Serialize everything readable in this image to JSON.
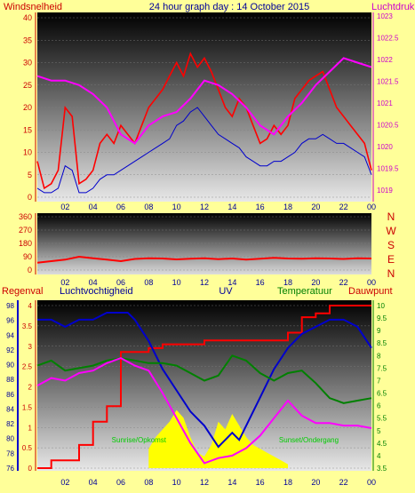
{
  "colors": {
    "bg": "#ffff99",
    "wind": "#ff0000",
    "gust": "#0000cc",
    "pressure": "#ff00ff",
    "humidity": "#0000cc",
    "rain": "#ff0000",
    "uv": "#ffff00",
    "temp": "#008000",
    "dew": "#ff00ff",
    "direction": "#ff0000",
    "dark_text": "#000099",
    "red_text": "#cc0000",
    "green_text": "#008000"
  },
  "header": {
    "left": "Windsnelheid",
    "center": "24 hour graph day : 14 October 2015",
    "right": "Luchtdruk"
  },
  "x_ticks": [
    "02",
    "04",
    "06",
    "08",
    "10",
    "12",
    "14",
    "16",
    "18",
    "20",
    "22",
    "00"
  ],
  "panel1": {
    "wind_ticks": [
      "0",
      "5",
      "10",
      "15",
      "20",
      "25",
      "30",
      "35",
      "40"
    ],
    "pressure_ticks": [
      "1019",
      "1019.5",
      "1020",
      "1020.5",
      "1021",
      "1021.5",
      "1022",
      "1022.5",
      "1023"
    ]
  },
  "panel2": {
    "dir_ticks": [
      "0",
      "90",
      "180",
      "270",
      "360"
    ],
    "compass": [
      "N",
      "W",
      "S",
      "E",
      "N"
    ]
  },
  "panel3": {
    "labels": {
      "rain": "Regenval",
      "humidity": "Luchtvochtigheid",
      "uv": "UV",
      "temp": "Temperatuur",
      "dew": "Dauwpunt"
    },
    "humidity_ticks": [
      "76",
      "78",
      "80",
      "82",
      "84",
      "86",
      "88",
      "90",
      "92",
      "94",
      "96",
      "98"
    ],
    "rain_ticks": [
      "0",
      "0.5",
      "1",
      "1.5",
      "2",
      "2.5",
      "3",
      "3.5",
      "4"
    ],
    "temp_ticks": [
      "3.5",
      "4",
      "4.5",
      "5",
      "5.5",
      "6",
      "6.5",
      "7",
      "7.5",
      "8",
      "8.5",
      "9",
      "9.5",
      "10"
    ],
    "annotations": [
      "Sunrise/Opkomst",
      "Sunset/Ondergang"
    ]
  },
  "chart_data": [
    {
      "type": "line",
      "x_range": [
        0,
        24
      ],
      "series": [
        {
          "axis": "left",
          "ylim": [
            0,
            40
          ],
          "x": [
            0,
            0.5,
            1,
            1.5,
            2,
            2.5,
            3,
            3.5,
            4,
            4.5,
            5,
            5.5,
            6,
            6.5,
            7,
            7.5,
            8,
            8.5,
            9,
            9.5,
            10,
            10.5,
            11,
            11.5,
            12,
            12.5,
            13,
            13.5,
            14,
            14.5,
            15,
            15.5,
            16,
            16.5,
            17,
            17.5,
            18,
            18.5,
            19,
            19.5,
            20,
            20.5,
            21,
            21.5,
            22,
            22.5,
            23,
            23.5,
            24
          ],
          "values": [
            8,
            2,
            3,
            6,
            20,
            18,
            3,
            4,
            6,
            12,
            14,
            12,
            16,
            14,
            12,
            16,
            20,
            22,
            24,
            27,
            30,
            27,
            32,
            29,
            31,
            28,
            24,
            20,
            18,
            22,
            20,
            16,
            12,
            13,
            16,
            14,
            16,
            22,
            24,
            26,
            27,
            28,
            24,
            20,
            18,
            16,
            14,
            12,
            6
          ]
        },
        {
          "axis": "left",
          "ylim": [
            0,
            40
          ],
          "x": [
            0,
            0.5,
            1,
            1.5,
            2,
            2.5,
            3,
            3.5,
            4,
            4.5,
            5,
            5.5,
            6,
            6.5,
            7,
            7.5,
            8,
            8.5,
            9,
            9.5,
            10,
            10.5,
            11,
            11.5,
            12,
            12.5,
            13,
            13.5,
            14,
            14.5,
            15,
            15.5,
            16,
            16.5,
            17,
            17.5,
            18,
            18.5,
            19,
            19.5,
            20,
            20.5,
            21,
            21.5,
            22,
            22.5,
            23,
            23.5,
            24
          ],
          "values": [
            2,
            1,
            1,
            2,
            7,
            6,
            1,
            1,
            2,
            4,
            5,
            5,
            6,
            7,
            8,
            9,
            10,
            11,
            12,
            13,
            16,
            17,
            19,
            20,
            18,
            16,
            14,
            13,
            12,
            11,
            9,
            8,
            7,
            7,
            8,
            8,
            9,
            10,
            12,
            13,
            13,
            14,
            13,
            12,
            12,
            11,
            10,
            9,
            5
          ]
        },
        {
          "axis": "right",
          "ylim": [
            1019,
            1023
          ],
          "x": [
            0,
            1,
            2,
            3,
            4,
            5,
            6,
            7,
            8,
            9,
            10,
            11,
            12,
            13,
            14,
            15,
            16,
            17,
            18,
            19,
            20,
            21,
            22,
            23,
            24
          ],
          "values": [
            1021.7,
            1021.6,
            1021.6,
            1021.5,
            1021.3,
            1021.0,
            1020.4,
            1020.2,
            1020.6,
            1020.8,
            1020.9,
            1021.2,
            1021.6,
            1021.5,
            1021.3,
            1021.0,
            1020.6,
            1020.4,
            1020.8,
            1021.1,
            1021.5,
            1021.8,
            1022.1,
            1022.0,
            1021.9
          ]
        }
      ]
    },
    {
      "type": "line",
      "x_range": [
        0,
        24
      ],
      "series": [
        {
          "ylim": [
            0,
            360
          ],
          "x": [
            0,
            1,
            2,
            3,
            4,
            5,
            6,
            7,
            8,
            9,
            10,
            11,
            12,
            13,
            14,
            15,
            16,
            17,
            18,
            19,
            20,
            21,
            22,
            23,
            24
          ],
          "values": [
            50,
            60,
            70,
            90,
            80,
            70,
            60,
            75,
            80,
            78,
            72,
            76,
            80,
            74,
            78,
            70,
            76,
            82,
            78,
            76,
            80,
            78,
            75,
            80,
            78
          ]
        }
      ]
    },
    {
      "type": "line",
      "x_range": [
        0,
        24
      ],
      "series": [
        {
          "axis": "humidity",
          "ylim": [
            76,
            99
          ],
          "x": [
            0,
            1,
            2,
            3,
            4,
            5,
            6,
            6.5,
            7,
            8,
            9,
            10,
            11,
            12,
            13,
            14,
            14.5,
            15,
            16,
            17,
            18,
            19,
            20,
            21,
            22,
            23,
            24
          ],
          "values": [
            97,
            97,
            96,
            97,
            97,
            98,
            98,
            98,
            97,
            94,
            90,
            87,
            84,
            82,
            79,
            81,
            80,
            82,
            86,
            90,
            93,
            95,
            96,
            97,
            97,
            96,
            93
          ]
        },
        {
          "axis": "rain",
          "ylim": [
            0,
            4.2
          ],
          "x": [
            0,
            1,
            2,
            3,
            4,
            5,
            6,
            7,
            8,
            9,
            10,
            11,
            12,
            13,
            14,
            15,
            16,
            17,
            18,
            19,
            20,
            21,
            22,
            23,
            24
          ],
          "values": [
            0,
            0.2,
            0.2,
            0.6,
            1.2,
            1.6,
            3.0,
            3.0,
            3.1,
            3.2,
            3.2,
            3.2,
            3.3,
            3.3,
            3.3,
            3.3,
            3.3,
            3.3,
            3.5,
            3.9,
            4.0,
            4.2,
            4.2,
            4.2,
            4.2
          ]
        },
        {
          "axis": "temp",
          "ylim": [
            3.5,
            10
          ],
          "x": [
            0,
            1,
            2,
            3,
            4,
            5,
            6,
            7,
            8,
            9,
            10,
            11,
            12,
            13,
            14,
            15,
            16,
            17,
            18,
            19,
            20,
            21,
            22,
            23,
            24
          ],
          "values": [
            7.6,
            7.8,
            7.4,
            7.5,
            7.6,
            7.8,
            7.9,
            7.8,
            7.7,
            7.7,
            7.6,
            7.3,
            7.0,
            7.2,
            8.0,
            7.8,
            7.3,
            7.0,
            7.3,
            7.4,
            6.9,
            6.3,
            6.1,
            6.2,
            6.3
          ]
        },
        {
          "axis": "temp",
          "ylim": [
            3.5,
            10
          ],
          "x": [
            0,
            1,
            2,
            3,
            4,
            5,
            6,
            7,
            8,
            9,
            10,
            11,
            12,
            13,
            14,
            15,
            16,
            17,
            18,
            19,
            20,
            21,
            22,
            23,
            24
          ],
          "values": [
            6.8,
            7.1,
            7.0,
            7.3,
            7.4,
            7.7,
            7.9,
            7.6,
            7.4,
            6.5,
            5.5,
            4.5,
            3.7,
            3.9,
            4.0,
            4.3,
            4.8,
            5.5,
            6.2,
            5.6,
            5.3,
            5.3,
            5.2,
            5.2,
            5.1
          ]
        },
        {
          "axis": "rain",
          "ylim": [
            0,
            4.2
          ],
          "type": "area",
          "x": [
            8,
            8.5,
            9,
            9.5,
            10,
            10.5,
            11,
            11.5,
            12,
            12.5,
            13,
            13.5,
            14,
            14.5,
            15,
            15.5,
            16,
            16.5,
            17,
            17.5,
            18
          ],
          "values": [
            0.5,
            0.8,
            1.0,
            1.2,
            1.5,
            1.3,
            0.8,
            0.4,
            0.3,
            0.6,
            1.2,
            1.0,
            1.4,
            1.1,
            0.8,
            0.6,
            0.5,
            0.4,
            0.3,
            0.2,
            0.1
          ]
        }
      ]
    }
  ]
}
